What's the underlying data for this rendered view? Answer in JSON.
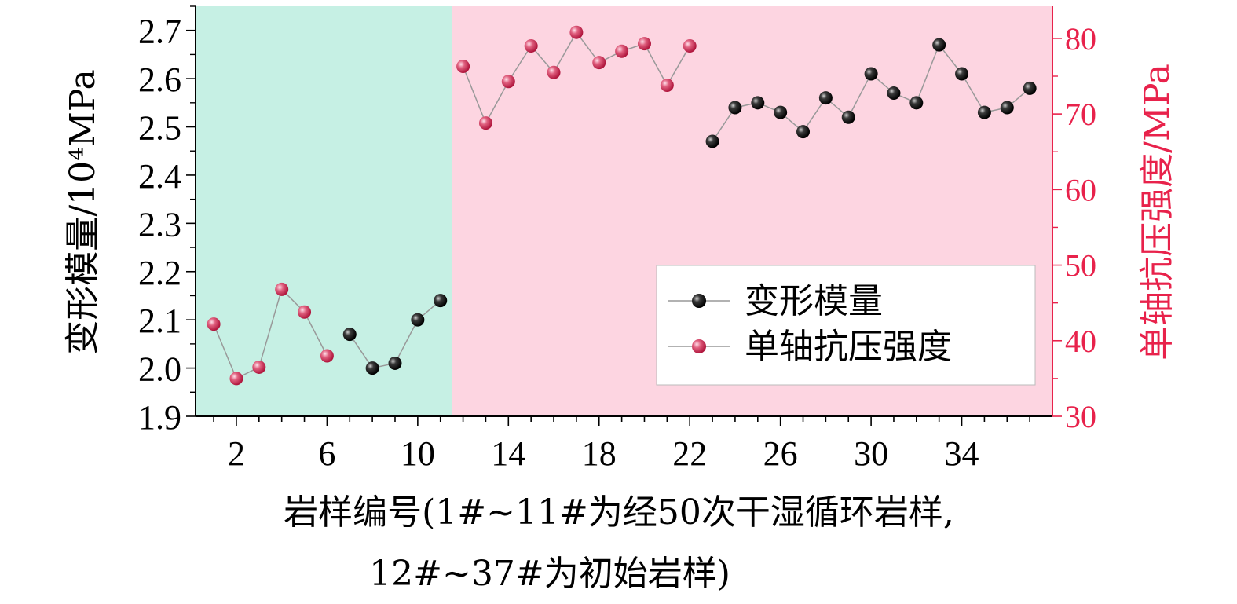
{
  "chart_data": {
    "type": "line",
    "xlabel_line1": "岩样编号(1#~11#为经50次干湿循环岩样,",
    "xlabel_line2": "12#~37#为初始岩样)",
    "ylabel_left": "变形模量/10⁴MPa",
    "ylabel_right": "单轴抗压强度/MPa",
    "xlim": [
      0.2,
      38
    ],
    "x_ticks": [
      2,
      6,
      10,
      14,
      18,
      22,
      26,
      30,
      34
    ],
    "ylim_left": [
      1.9,
      2.75
    ],
    "y_ticks_left": [
      "1.9",
      "2.0",
      "2.1",
      "2.2",
      "2.3",
      "2.4",
      "2.5",
      "2.6",
      "2.7"
    ],
    "ylim_right": [
      30,
      84.25
    ],
    "y_ticks_right": [
      "30",
      "40",
      "50",
      "60",
      "70",
      "80"
    ],
    "regions": [
      {
        "x_range": [
          0.2,
          11.5
        ],
        "color": "#c6f0e4"
      },
      {
        "x_range": [
          11.5,
          38
        ],
        "color": "#fdd5e1"
      }
    ],
    "legend_position": "lower-right",
    "colors": {
      "right_axis": "#e8224b",
      "line": "#999999",
      "marker_modulus": "#1a1a1a",
      "marker_strength": "#d9406a"
    },
    "series": [
      {
        "name": "变形模量",
        "axis": "left",
        "segments": [
          {
            "x": [
              7,
              8,
              9,
              10,
              11
            ],
            "y": [
              2.07,
              2.0,
              2.01,
              2.1,
              2.14
            ]
          },
          {
            "x": [
              23,
              24,
              25,
              26,
              27,
              28,
              29,
              30,
              31,
              32,
              33,
              34,
              35,
              36,
              37
            ],
            "y": [
              2.47,
              2.54,
              2.55,
              2.53,
              2.49,
              2.56,
              2.52,
              2.61,
              2.57,
              2.55,
              2.67,
              2.61,
              2.53,
              2.54,
              2.58
            ]
          }
        ]
      },
      {
        "name": "单轴抗压强度",
        "axis": "right",
        "segments": [
          {
            "x": [
              1,
              2,
              3,
              4,
              5,
              6
            ],
            "y": [
              42.2,
              35.0,
              36.5,
              46.8,
              43.8,
              38.0
            ]
          },
          {
            "x": [
              12,
              13,
              14,
              15,
              16,
              17,
              18,
              19,
              20,
              21,
              22
            ],
            "y": [
              76.3,
              68.8,
              74.3,
              79.0,
              75.5,
              80.8,
              76.8,
              78.3,
              79.3,
              73.8,
              79.0
            ]
          }
        ]
      }
    ]
  }
}
